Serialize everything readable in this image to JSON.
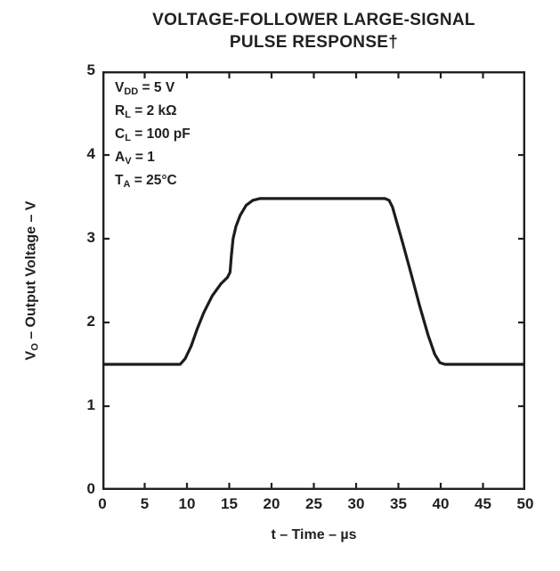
{
  "chart_data": {
    "type": "line",
    "title_lines": [
      "VOLTAGE-FOLLOWER LARGE-SIGNAL",
      "PULSE RESPONSE†"
    ],
    "xlabel": "t – Time – µs",
    "ylabel_parts": {
      "pre": "V",
      "sub": "O",
      "post": " – Output Voltage – V"
    },
    "xlim": [
      0,
      50
    ],
    "ylim": [
      0,
      5
    ],
    "xticks": [
      0,
      5,
      10,
      15,
      20,
      25,
      30,
      35,
      40,
      45,
      50
    ],
    "yticks": [
      0,
      1,
      2,
      3,
      4,
      5
    ],
    "grid": false,
    "legend_position": "none",
    "axis_color": "#231f20",
    "curve_color": "#1c1c1c",
    "conditions": [
      {
        "pre": "V",
        "sub": "DD",
        "post": " = 5 V"
      },
      {
        "pre": "R",
        "sub": "L",
        "post": " = 2 kΩ"
      },
      {
        "pre": "C",
        "sub": "L",
        "post": " = 100 pF"
      },
      {
        "pre": "A",
        "sub": "V",
        "post": " = 1"
      },
      {
        "pre": "T",
        "sub": "A",
        "post": " = 25°C"
      }
    ],
    "series": [
      {
        "name": "output-voltage-pulse-response",
        "points": [
          [
            0,
            1.5
          ],
          [
            9.2,
            1.5
          ],
          [
            9.8,
            1.57
          ],
          [
            10.5,
            1.72
          ],
          [
            11.2,
            1.92
          ],
          [
            12,
            2.12
          ],
          [
            13,
            2.32
          ],
          [
            14,
            2.46
          ],
          [
            14.8,
            2.54
          ],
          [
            15.1,
            2.6
          ],
          [
            15.25,
            2.8
          ],
          [
            15.45,
            3.0
          ],
          [
            15.8,
            3.15
          ],
          [
            16.3,
            3.28
          ],
          [
            17,
            3.4
          ],
          [
            17.8,
            3.46
          ],
          [
            18.6,
            3.48
          ],
          [
            33.4,
            3.48
          ],
          [
            33.9,
            3.46
          ],
          [
            34.3,
            3.38
          ],
          [
            34.8,
            3.2
          ],
          [
            35.5,
            2.95
          ],
          [
            36.5,
            2.58
          ],
          [
            37.5,
            2.2
          ],
          [
            38.5,
            1.85
          ],
          [
            39.3,
            1.62
          ],
          [
            39.9,
            1.52
          ],
          [
            40.5,
            1.5
          ],
          [
            50,
            1.5
          ]
        ]
      }
    ]
  }
}
